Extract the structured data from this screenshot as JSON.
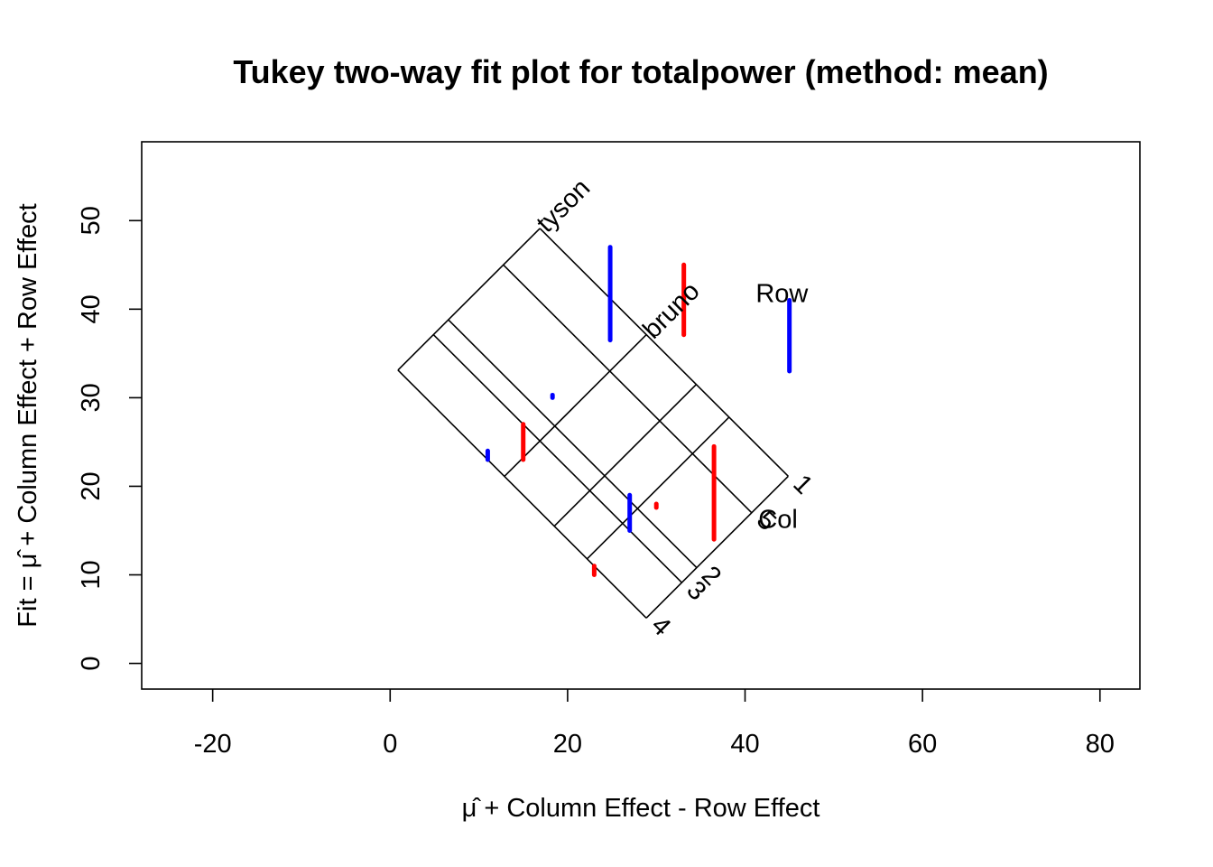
{
  "chart_data": {
    "type": "scatter",
    "title": "Tukey two-way fit plot for totalpower (method: mean)",
    "xlabel": "μ̂ + Column Effect - Row Effect",
    "ylabel": "Fit = μ̂ + Column Effect + Row Effect",
    "xlim": [
      -28,
      84.5
    ],
    "ylim": [
      -2.9,
      58.9
    ],
    "x_ticks": [
      -20,
      0,
      20,
      40,
      60,
      80
    ],
    "y_ticks": [
      0,
      10,
      20,
      30,
      40,
      50
    ],
    "grid": false,
    "mu": 28.88,
    "row_effects": [
      {
        "label": "bruno",
        "value": 4.12
      },
      {
        "label": "tyson",
        "value": 16.12
      }
    ],
    "row_effects_unlabeled": [
      -1.5,
      -5.2,
      -11.87
    ],
    "col_effects": [
      {
        "label": "1",
        "value": 4.12
      },
      {
        "label": "5",
        "value": 0
      },
      {
        "label": "2",
        "value": -6.2
      },
      {
        "label": "3",
        "value": -7.88
      },
      {
        "label": "4",
        "value": -11.88
      }
    ],
    "residuals": [
      {
        "x": 24.8,
        "fit": 36.5,
        "residual": 10.5,
        "sign": "positive"
      },
      {
        "x": 33.1,
        "fit": 45.0,
        "residual": -7.9,
        "sign": "negative"
      },
      {
        "x": 45.0,
        "fit": 33.0,
        "residual": 8.0,
        "sign": "positive"
      },
      {
        "x": 36.5,
        "fit": 24.5,
        "residual": -10.5,
        "sign": "negative"
      },
      {
        "x": 18.3,
        "fit": 30.0,
        "residual": 0.3,
        "sign": "positive"
      },
      {
        "x": 15.0,
        "fit": 27.0,
        "residual": -4.0,
        "sign": "negative"
      },
      {
        "x": 11.0,
        "fit": 23.0,
        "residual": 1.0,
        "sign": "positive"
      },
      {
        "x": 27.0,
        "fit": 15.0,
        "residual": 4.0,
        "sign": "positive"
      },
      {
        "x": 30.0,
        "fit": 18.0,
        "residual": -0.4,
        "sign": "negative"
      },
      {
        "x": 23.0,
        "fit": 11.0,
        "residual": -1.0,
        "sign": "negative"
      }
    ],
    "annotations": {
      "row_group": "Row",
      "col_group": "Col"
    },
    "colors": {
      "positive_residual": "#0000FF",
      "negative_residual": "#FF0000",
      "lines": "#000000"
    }
  }
}
